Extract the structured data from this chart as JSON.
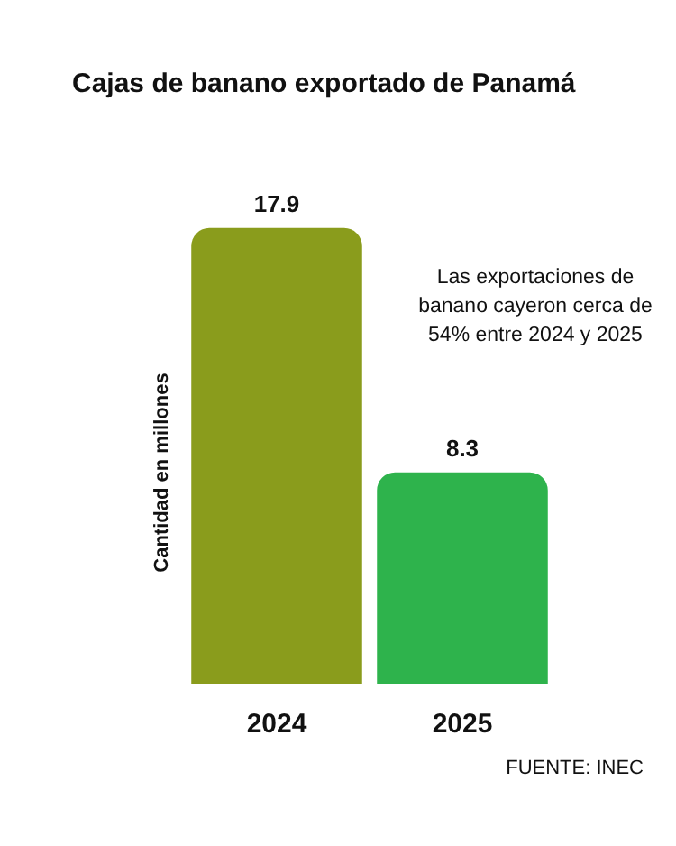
{
  "chart_data": {
    "type": "bar",
    "title": "Cajas de banano exportado de Panamá",
    "ylabel": "Cantidad en millones",
    "categories": [
      "2024",
      "2025"
    ],
    "values": [
      17.9,
      8.3
    ],
    "colors": [
      "#8a9c1c",
      "#2eb34c"
    ],
    "data_labels": true,
    "grid": false,
    "legend": false,
    "annotations": [
      "Las exportaciones de banano cayeron cerca de 54% entre 2024 y 2025",
      "FUENTE: INEC"
    ]
  }
}
